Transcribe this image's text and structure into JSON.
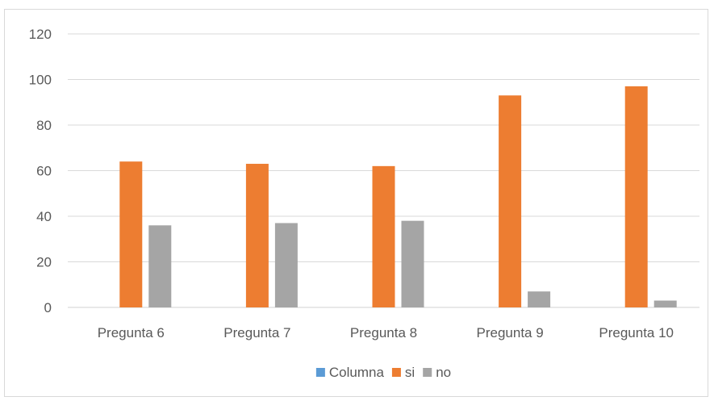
{
  "chart_data": {
    "type": "bar",
    "title": "",
    "xlabel": "",
    "ylabel": "",
    "categories": [
      "Pregunta 6",
      "Pregunta 7",
      "Pregunta 8",
      "Pregunta 9",
      "Pregunta 10"
    ],
    "series": [
      {
        "name": "Columna",
        "color": "#5b9bd5",
        "values": [
          0,
          0,
          0,
          0,
          0
        ]
      },
      {
        "name": "si",
        "color": "#ed7d31",
        "values": [
          64,
          63,
          62,
          93,
          97
        ]
      },
      {
        "name": "no",
        "color": "#a5a5a5",
        "values": [
          36,
          37,
          38,
          7,
          3
        ]
      }
    ],
    "ylim": [
      0,
      120
    ],
    "yticks": [
      "0",
      "20",
      "40",
      "60",
      "80",
      "100",
      "120"
    ],
    "grid": true,
    "legend_position": "bottom"
  }
}
